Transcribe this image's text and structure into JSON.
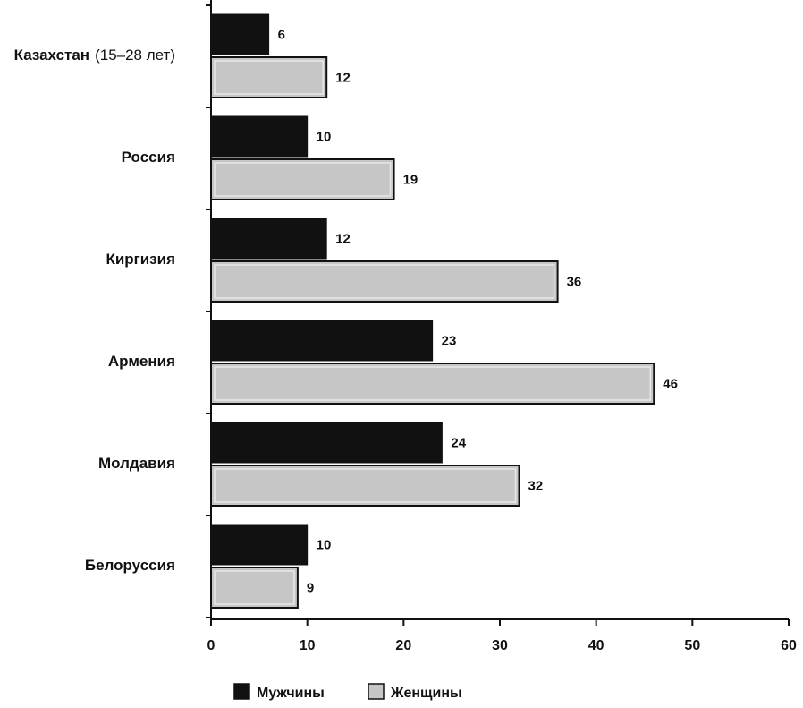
{
  "chart_data": {
    "type": "bar",
    "orientation": "horizontal",
    "categories": [
      {
        "name": "Казахстан",
        "note": "(15–28 лет)"
      },
      {
        "name": "Россия",
        "note": ""
      },
      {
        "name": "Киргизия",
        "note": ""
      },
      {
        "name": "Армения",
        "note": ""
      },
      {
        "name": "Молдавия",
        "note": ""
      },
      {
        "name": "Белоруссия",
        "note": ""
      }
    ],
    "series": [
      {
        "name": "Мужчины",
        "color": "#111111",
        "values": [
          6,
          10,
          12,
          23,
          24,
          10
        ],
        "labels": [
          "6",
          "10",
          "12",
          "23",
          "24",
          "10"
        ]
      },
      {
        "name": "Женщины",
        "color": "#c6c6c6",
        "values": [
          12,
          19,
          36,
          46,
          32,
          9
        ],
        "labels": [
          "12",
          "19",
          "36",
          "46",
          "32",
          "9"
        ]
      }
    ],
    "xlim": [
      0,
      60
    ],
    "xticks": [
      0,
      10,
      20,
      30,
      40,
      50,
      60
    ],
    "title": "",
    "xlabel": "",
    "ylabel": "",
    "grid": false,
    "legend_position": "bottom"
  }
}
